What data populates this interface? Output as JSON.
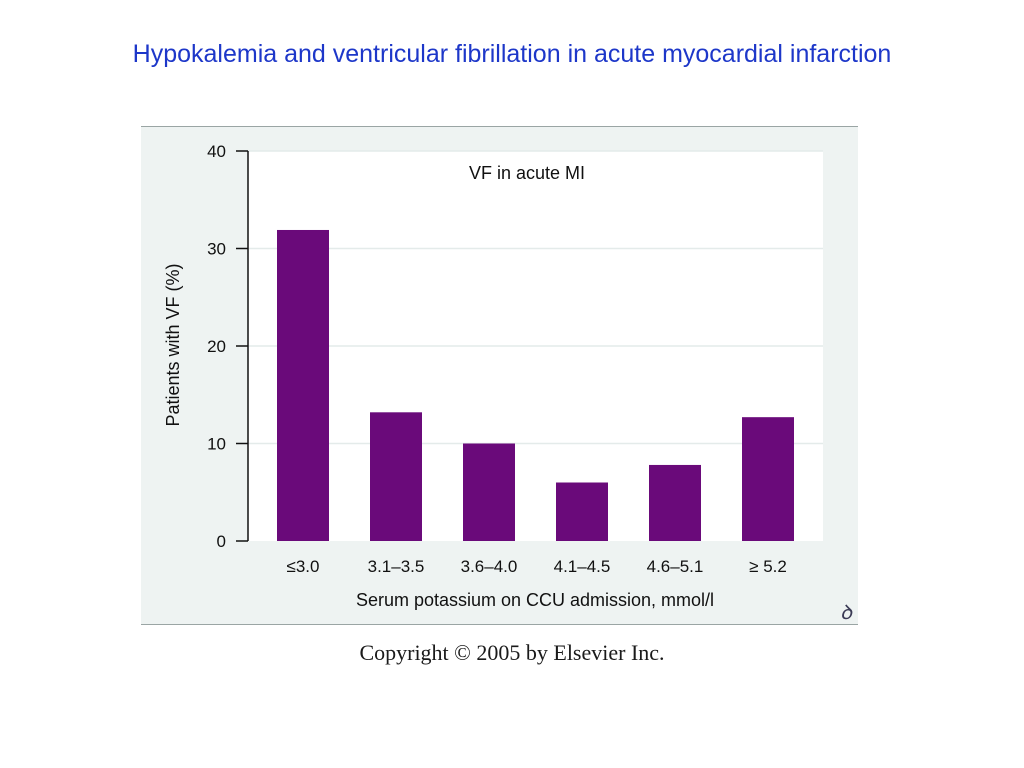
{
  "slide": {
    "title": "Hypokalemia and ventricular fibrillation in acute myocardial infarction",
    "copyright": "Copyright © 2005 by Elsevier Inc."
  },
  "colors": {
    "title": "#1d37c9",
    "bar": "#6a0a7a",
    "plot_bg": "#ffffff",
    "figure_bg": "#eef3f2",
    "grid": "#e4ebea"
  },
  "icons": {
    "publisher_mark": "elsevier-logo-icon"
  },
  "chart_data": {
    "type": "bar",
    "title": "VF in acute MI",
    "xlabel": "Serum potassium on CCU admission, mmol/l",
    "ylabel": "Patients with VF (%)",
    "categories": [
      "≤3.0",
      "3.1–3.5",
      "3.6–4.0",
      "4.1–4.5",
      "4.6–5.1",
      "≥ 5.2"
    ],
    "values": [
      31.9,
      13.2,
      10.0,
      6.0,
      7.8,
      12.7
    ],
    "ylim": [
      0,
      40
    ],
    "yticks": [
      0,
      10,
      20,
      30,
      40
    ],
    "grid": true,
    "legend": "none"
  }
}
